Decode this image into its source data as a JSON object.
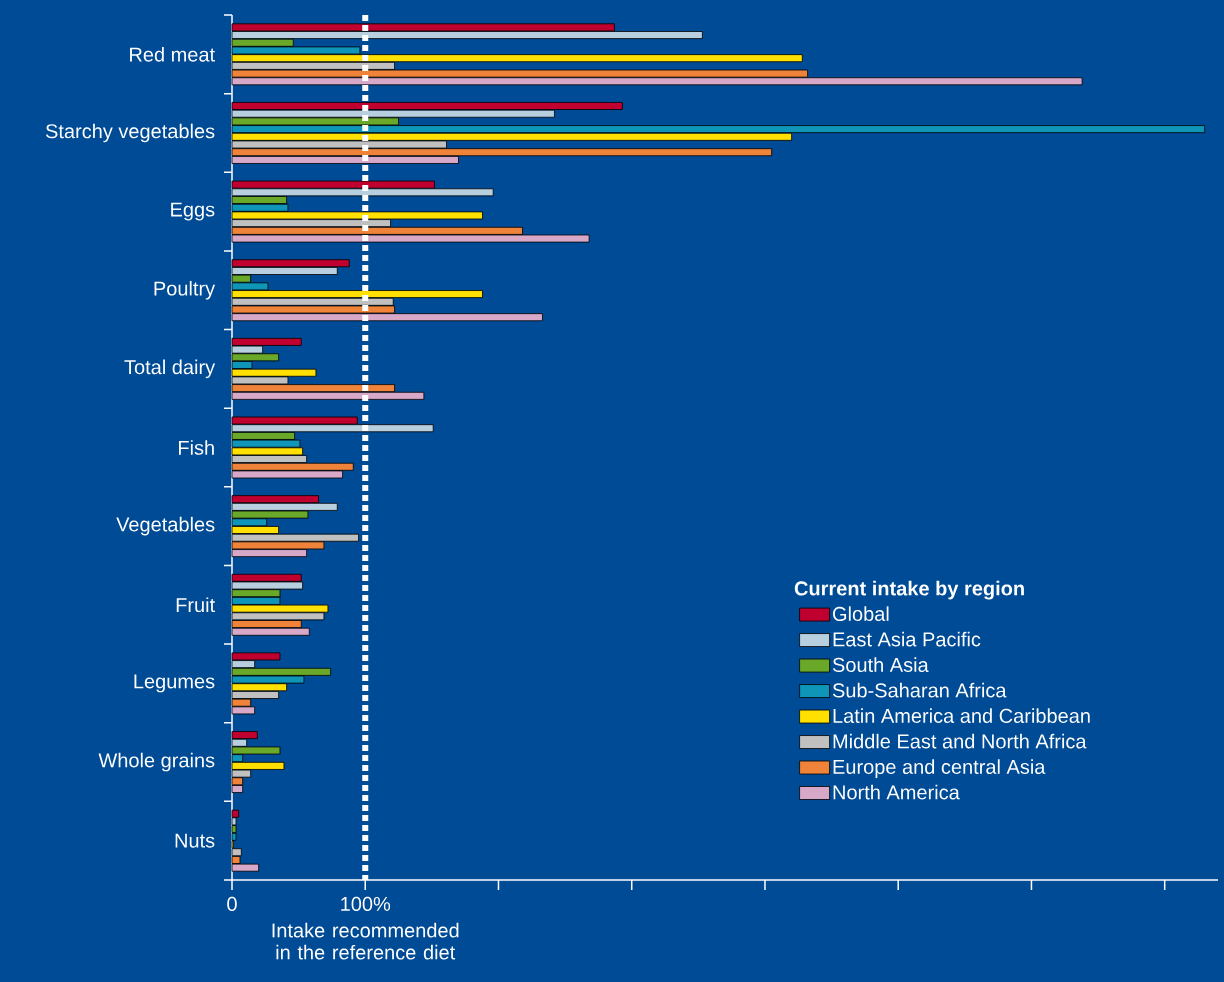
{
  "chart_data": {
    "type": "bar",
    "orientation": "horizontal",
    "categories": [
      "Red meat",
      "Starchy vegetables",
      "Eggs",
      "Poultry",
      "Total dairy",
      "Fish",
      "Vegetables",
      "Fruit",
      "Legumes",
      "Whole grains",
      "Nuts"
    ],
    "series": [
      {
        "name": "Global",
        "color": "#c0002f",
        "values": [
          287,
          293,
          152,
          88,
          52,
          94,
          65,
          52,
          36,
          19,
          5
        ]
      },
      {
        "name": "East Asia Pacific",
        "color": "#b8cfe0",
        "values": [
          353,
          242,
          196,
          79,
          23,
          151,
          79,
          53,
          17,
          11,
          3
        ]
      },
      {
        "name": "South Asia",
        "color": "#6aa829",
        "values": [
          46,
          125,
          41,
          14,
          35,
          47,
          57,
          36,
          74,
          36,
          3
        ]
      },
      {
        "name": "Sub-Saharan Africa",
        "color": "#0e95b8",
        "values": [
          96,
          730,
          42,
          27,
          15,
          51,
          26,
          36,
          54,
          8,
          3
        ]
      },
      {
        "name": "Latin America and Caribbean",
        "color": "#ffe000",
        "values": [
          428,
          420,
          188,
          188,
          63,
          53,
          35,
          72,
          41,
          39,
          1
        ]
      },
      {
        "name": "Middle East and North Africa",
        "color": "#c0c0c0",
        "values": [
          122,
          161,
          119,
          121,
          42,
          56,
          95,
          69,
          35,
          14,
          7
        ]
      },
      {
        "name": "Europe and central  Asia",
        "color": "#f0833a",
        "values": [
          432,
          405,
          218,
          122,
          122,
          91,
          69,
          52,
          14,
          8,
          6
        ]
      },
      {
        "name": "North America",
        "color": "#d8a8c8",
        "values": [
          638,
          170,
          268,
          233,
          144,
          83,
          56,
          58,
          17,
          8,
          20
        ]
      }
    ],
    "xlim": [
      0,
      740
    ],
    "xticks": [
      0,
      {
        "value": 100,
        "label": "100%"
      },
      {
        "value": 200,
        "label": null
      },
      {
        "value": 300,
        "label": null
      },
      {
        "value": 400,
        "label": null
      },
      {
        "value": 500,
        "label": null
      },
      {
        "value": 600,
        "label": null
      },
      {
        "value": 700,
        "label": null
      }
    ],
    "ref_lines": [
      {
        "axis": "x",
        "value": 100,
        "color": "#ffffff",
        "line_style": "dotted"
      }
    ],
    "annotations": [
      "Intake recommended in the reference diet"
    ],
    "legend": "bottom right",
    "legend_title": "Current intake by region"
  }
}
